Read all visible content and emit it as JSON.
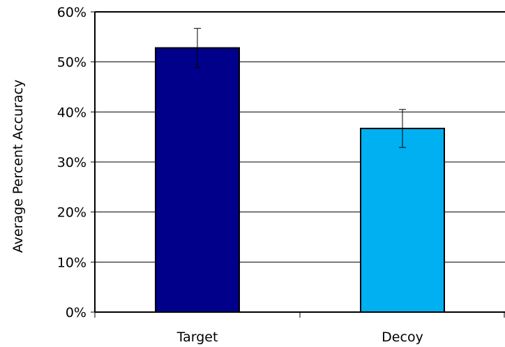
{
  "chart_data": {
    "type": "bar",
    "title": "",
    "xlabel": "",
    "ylabel": "Average Percent Accuracy",
    "categories": [
      "Target",
      "Decoy"
    ],
    "values": [
      52.8,
      36.7
    ],
    "error": [
      3.9,
      3.8
    ],
    "colors": [
      "#00008b",
      "#00b0f0"
    ],
    "ylim": [
      0,
      60
    ],
    "y_ticks": [
      0,
      10,
      20,
      30,
      40,
      50,
      60
    ],
    "y_tick_labels": [
      "0%",
      "10%",
      "20%",
      "30%",
      "40%",
      "50%",
      "60%"
    ],
    "grid": true,
    "legend": "none"
  }
}
